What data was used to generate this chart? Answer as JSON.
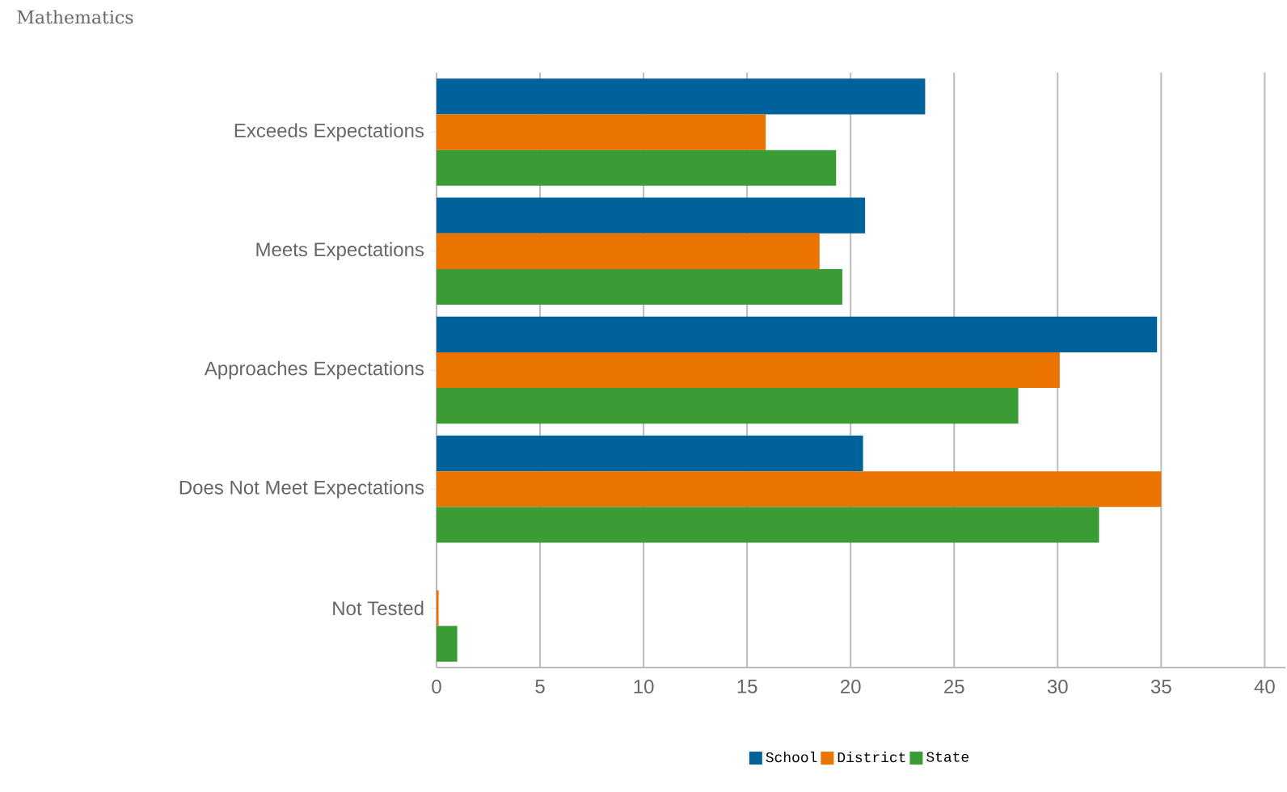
{
  "chart_data": {
    "type": "bar",
    "orientation": "horizontal",
    "title": "Mathematics",
    "categories": [
      "Exceeds Expectations",
      "Meets Expectations",
      "Approaches Expectations",
      "Does Not Meet Expectations",
      "Not Tested"
    ],
    "series": [
      {
        "name": "School",
        "color": "#00629b",
        "values": [
          23.6,
          20.7,
          34.8,
          20.6,
          0
        ]
      },
      {
        "name": "District",
        "color": "#eb7300",
        "values": [
          15.9,
          18.5,
          30.1,
          35.0,
          0.1
        ]
      },
      {
        "name": "State",
        "color": "#3a9c35",
        "values": [
          19.3,
          19.6,
          28.1,
          32.0,
          1.0
        ]
      }
    ],
    "xlim": [
      0,
      41
    ],
    "xticks": [
      0,
      5,
      10,
      15,
      20,
      25,
      30,
      35,
      40
    ],
    "grid": "x",
    "legend": "bottom"
  }
}
